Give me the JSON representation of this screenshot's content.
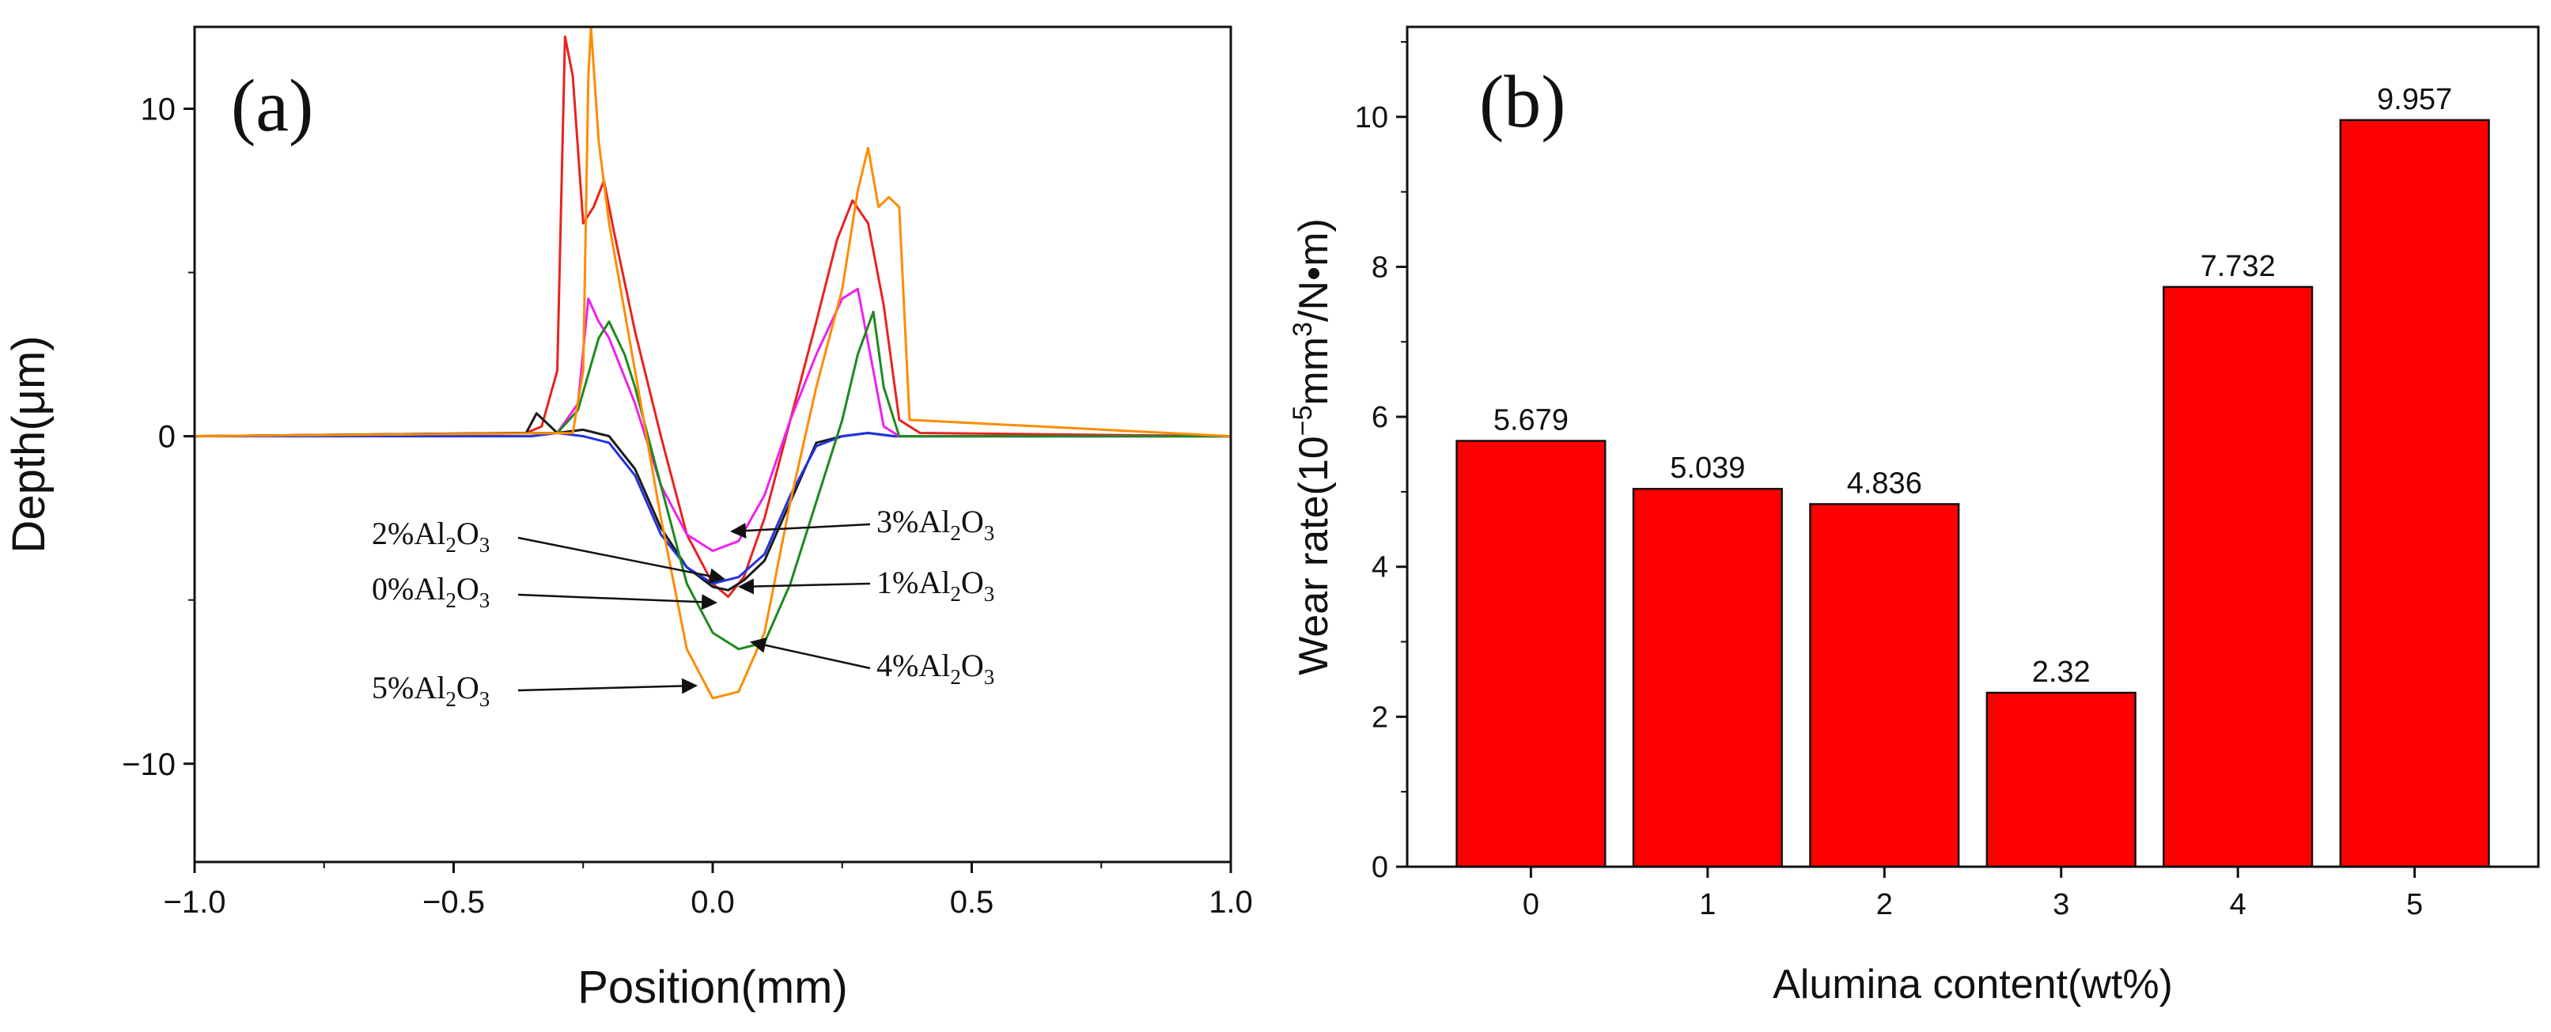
{
  "chart_data": [
    {
      "panel": "(a)",
      "type": "line",
      "xlabel": "Position(mm)",
      "ylabel": "Depth(μm)",
      "xlim": [
        -1.0,
        1.0
      ],
      "ylim": [
        -13,
        12.5
      ],
      "xticks": [
        "−1.0",
        "−0.5",
        "0.0",
        "0.5",
        "1.0"
      ],
      "yticks": [
        "10",
        "0",
        "−10"
      ],
      "grid": false,
      "series": [
        {
          "name": "0%Al2O3",
          "color": "#e8231f",
          "x": [
            -1.0,
            -0.36,
            -0.33,
            -0.3,
            -0.285,
            -0.27,
            -0.25,
            -0.23,
            -0.21,
            -0.19,
            -0.15,
            -0.1,
            -0.05,
            0.0,
            0.03,
            0.06,
            0.1,
            0.15,
            0.2,
            0.24,
            0.27,
            0.3,
            0.33,
            0.36,
            0.4,
            1.0
          ],
          "y": [
            0.0,
            0.1,
            0.3,
            2.0,
            12.2,
            11.0,
            6.5,
            7.0,
            7.8,
            6.2,
            3.2,
            0.0,
            -3.0,
            -4.5,
            -4.9,
            -4.3,
            -2.5,
            0.5,
            3.5,
            6.0,
            7.2,
            6.5,
            4.0,
            0.5,
            0.1,
            0.0
          ]
        },
        {
          "name": "1%Al2O3",
          "color": "#1a1a1a",
          "x": [
            -1.0,
            -0.36,
            -0.34,
            -0.3,
            -0.25,
            -0.2,
            -0.15,
            -0.1,
            -0.05,
            0.0,
            0.03,
            0.06,
            0.1,
            0.15,
            0.2,
            0.25,
            0.3,
            0.35,
            1.0
          ],
          "y": [
            0.0,
            0.1,
            0.7,
            0.1,
            0.2,
            0.0,
            -1.0,
            -2.8,
            -4.0,
            -4.6,
            -4.7,
            -4.4,
            -3.8,
            -2.0,
            -0.2,
            0.0,
            0.1,
            0.0,
            0.0
          ]
        },
        {
          "name": "2%Al2O3",
          "color": "#2233dd",
          "x": [
            -1.0,
            -0.35,
            -0.3,
            -0.25,
            -0.2,
            -0.15,
            -0.1,
            -0.05,
            0.0,
            0.05,
            0.1,
            0.15,
            0.2,
            0.25,
            0.3,
            0.35,
            1.0
          ],
          "y": [
            0.0,
            0.0,
            0.1,
            0.0,
            -0.2,
            -1.2,
            -3.0,
            -4.0,
            -4.5,
            -4.3,
            -3.6,
            -1.8,
            -0.3,
            0.0,
            0.1,
            0.0,
            0.0
          ]
        },
        {
          "name": "3%Al2O3",
          "color": "#ee22ee",
          "x": [
            -1.0,
            -0.3,
            -0.26,
            -0.24,
            -0.22,
            -0.2,
            -0.15,
            -0.1,
            -0.05,
            0.0,
            0.05,
            0.1,
            0.15,
            0.2,
            0.25,
            0.28,
            0.31,
            0.33,
            0.36,
            1.0
          ],
          "y": [
            0.0,
            0.1,
            1.0,
            4.2,
            3.5,
            3.0,
            1.0,
            -1.5,
            -3.0,
            -3.5,
            -3.2,
            -1.8,
            0.5,
            2.5,
            4.2,
            4.5,
            2.0,
            0.3,
            0.0,
            0.0
          ]
        },
        {
          "name": "4%Al2O3",
          "color": "#1e8a1e",
          "x": [
            -1.0,
            -0.3,
            -0.26,
            -0.22,
            -0.2,
            -0.17,
            -0.15,
            -0.1,
            -0.05,
            0.0,
            0.05,
            0.1,
            0.15,
            0.2,
            0.25,
            0.28,
            0.31,
            0.33,
            0.36,
            1.0
          ],
          "y": [
            0.0,
            0.1,
            0.8,
            3.0,
            3.5,
            2.5,
            1.5,
            -1.5,
            -4.5,
            -6.0,
            -6.5,
            -6.3,
            -4.5,
            -2.0,
            0.5,
            2.5,
            3.8,
            1.5,
            0.0,
            0.0
          ]
        },
        {
          "name": "5%Al2O3",
          "color": "#ff8c00",
          "x": [
            -1.0,
            -0.27,
            -0.25,
            -0.24,
            -0.235,
            -0.22,
            -0.2,
            -0.15,
            -0.1,
            -0.05,
            0.0,
            0.05,
            0.1,
            0.15,
            0.2,
            0.25,
            0.28,
            0.3,
            0.32,
            0.34,
            0.36,
            0.38,
            1.0
          ],
          "y": [
            0.0,
            0.1,
            2.0,
            11.0,
            12.5,
            9.0,
            6.5,
            2.0,
            -2.5,
            -6.5,
            -8.0,
            -7.8,
            -6.0,
            -2.0,
            1.5,
            4.5,
            7.5,
            8.8,
            7.0,
            7.3,
            7.0,
            0.5,
            0.0
          ]
        }
      ],
      "annotations": [
        {
          "base": "2%Al",
          "sub1": "2",
          "mid": "O",
          "sub2": "3"
        },
        {
          "base": "0%Al",
          "sub1": "2",
          "mid": "O",
          "sub2": "3"
        },
        {
          "base": "5%Al",
          "sub1": "2",
          "mid": "O",
          "sub2": "3"
        },
        {
          "base": "3%Al",
          "sub1": "2",
          "mid": "O",
          "sub2": "3"
        },
        {
          "base": "1%Al",
          "sub1": "2",
          "mid": "O",
          "sub2": "3"
        },
        {
          "base": "4%Al",
          "sub1": "2",
          "mid": "O",
          "sub2": "3"
        }
      ]
    },
    {
      "panel": "(b)",
      "type": "bar",
      "xlabel": "Alumina content(wt%)",
      "ylabel_parts": {
        "pre": "Wear rate(10",
        "sup1": "−5",
        "mid": "mm",
        "sup2": "3",
        "post": "/N•m)"
      },
      "categories": [
        "0",
        "1",
        "2",
        "3",
        "4",
        "5"
      ],
      "values": [
        5.679,
        5.039,
        4.836,
        2.32,
        7.732,
        9.957
      ],
      "value_labels": [
        "5.679",
        "5.039",
        "4.836",
        "2.32",
        "7.732",
        "9.957"
      ],
      "ylim": [
        0,
        11.2
      ],
      "yticks": [
        "0",
        "2",
        "4",
        "6",
        "8",
        "10"
      ],
      "bar_color": "#ff0000",
      "grid": false
    }
  ]
}
